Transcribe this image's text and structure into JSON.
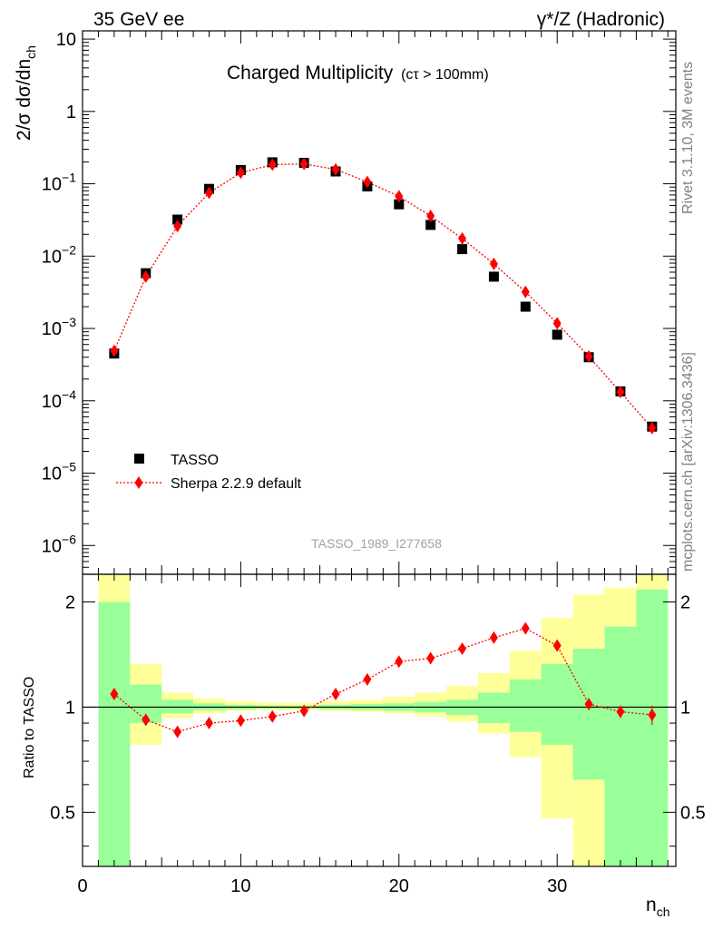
{
  "header": {
    "energy": "35 GeV ee",
    "process_main": "γ*/Z (Hadronic)"
  },
  "side_text": {
    "rivet": "Rivet 3.1.10,  3M events",
    "site": "mcplots.cern.ch [arXiv:1306.3436]"
  },
  "chart_data": [
    {
      "type": "scatter",
      "panel": "main",
      "title": "Charged Multiplicity",
      "title_suffix": "(cτ > 100mm)",
      "ylabel": "2/σ dσ/dn_ch",
      "yscale": "log",
      "ylim": [
        4e-07,
        13
      ],
      "xlim": [
        0,
        37.5
      ],
      "analysis_label": "TASSO_1989_I277658",
      "legend_position": "lower-left",
      "y_ticks": [
        {
          "v": 10,
          "m": "10",
          "e": ""
        },
        {
          "v": 1,
          "m": "1",
          "e": ""
        },
        {
          "v": 0.1,
          "m": "10",
          "e": "−1"
        },
        {
          "v": 0.01,
          "m": "10",
          "e": "−2"
        },
        {
          "v": 0.001,
          "m": "10",
          "e": "−3"
        },
        {
          "v": 0.0001,
          "m": "10",
          "e": "−4"
        },
        {
          "v": 1e-05,
          "m": "10",
          "e": "−5"
        },
        {
          "v": 1e-06,
          "m": "10",
          "e": "−6"
        }
      ],
      "x": [
        2,
        4,
        6,
        8,
        10,
        12,
        14,
        16,
        18,
        20,
        22,
        24,
        26,
        28,
        30,
        32,
        34,
        36
      ],
      "series": [
        {
          "name": "TASSO",
          "marker": "square",
          "color": "#000000",
          "values": [
            0.00045,
            0.0058,
            0.032,
            0.085,
            0.155,
            0.198,
            0.195,
            0.148,
            0.092,
            0.052,
            0.027,
            0.0125,
            0.0052,
            0.002,
            0.00082,
            0.0004,
            0.000135,
            4.4e-05
          ]
        },
        {
          "name": "Sherpa 2.2.9 default",
          "marker": "diamond",
          "color": "#ff0000",
          "values": [
            0.00049,
            0.0052,
            0.026,
            0.075,
            0.142,
            0.184,
            0.188,
            0.158,
            0.106,
            0.067,
            0.036,
            0.0175,
            0.0078,
            0.0032,
            0.00118,
            0.00041,
            0.000132,
            4.2e-05
          ]
        }
      ]
    },
    {
      "type": "scatter",
      "panel": "ratio",
      "ylabel": "Ratio to TASSO",
      "xlabel": "n_ch",
      "yscale": "log",
      "ylim": [
        0.35,
        2.4
      ],
      "xlim": [
        0,
        37.5
      ],
      "x_ticks": [
        0,
        10,
        20,
        30
      ],
      "y_ticks": [
        0.5,
        1,
        2
      ],
      "bands": {
        "bins": [
          [
            1,
            3
          ],
          [
            3,
            5
          ],
          [
            5,
            7
          ],
          [
            7,
            9
          ],
          [
            9,
            11
          ],
          [
            11,
            13
          ],
          [
            13,
            15
          ],
          [
            15,
            17
          ],
          [
            17,
            19
          ],
          [
            19,
            21
          ],
          [
            21,
            23
          ],
          [
            23,
            25
          ],
          [
            25,
            27
          ],
          [
            27,
            29
          ],
          [
            29,
            31
          ],
          [
            31,
            33
          ],
          [
            33,
            35
          ],
          [
            35,
            37
          ]
        ],
        "stat_color": "#99ff99",
        "total_color": "#ffff99",
        "stat_lo": [
          0.3,
          0.9,
          0.96,
          0.98,
          0.985,
          0.99,
          0.99,
          0.985,
          0.98,
          0.975,
          0.965,
          0.95,
          0.9,
          0.85,
          0.78,
          0.62,
          0.3,
          0.3
        ],
        "stat_hi": [
          2.0,
          1.16,
          1.05,
          1.025,
          1.015,
          1.01,
          1.01,
          1.015,
          1.02,
          1.025,
          1.035,
          1.05,
          1.1,
          1.2,
          1.33,
          1.47,
          1.7,
          2.17
        ],
        "total_lo": [
          0.3,
          0.78,
          0.93,
          0.96,
          0.975,
          0.98,
          0.98,
          0.975,
          0.97,
          0.96,
          0.94,
          0.91,
          0.84,
          0.72,
          0.48,
          0.3,
          0.3,
          0.3
        ],
        "total_hi": [
          2.4,
          1.33,
          1.1,
          1.06,
          1.04,
          1.03,
          1.03,
          1.04,
          1.05,
          1.07,
          1.1,
          1.15,
          1.25,
          1.45,
          1.8,
          2.1,
          2.2,
          2.4
        ]
      },
      "series": [
        {
          "name": "Sherpa 2.2.9 default",
          "marker": "diamond",
          "color": "#ff0000",
          "x": [
            2,
            4,
            6,
            8,
            10,
            12,
            14,
            16,
            18,
            20,
            22,
            24,
            26,
            28,
            30,
            32,
            34,
            36
          ],
          "values": [
            1.09,
            0.92,
            0.85,
            0.9,
            0.915,
            0.94,
            0.975,
            1.09,
            1.2,
            1.35,
            1.38,
            1.47,
            1.58,
            1.68,
            1.5,
            1.02,
            0.97,
            0.95
          ],
          "err": [
            0,
            0,
            0,
            0,
            0,
            0,
            0,
            0,
            0,
            0,
            0,
            0,
            0,
            0,
            0,
            0.02,
            0.04,
            0.06
          ]
        }
      ]
    }
  ]
}
